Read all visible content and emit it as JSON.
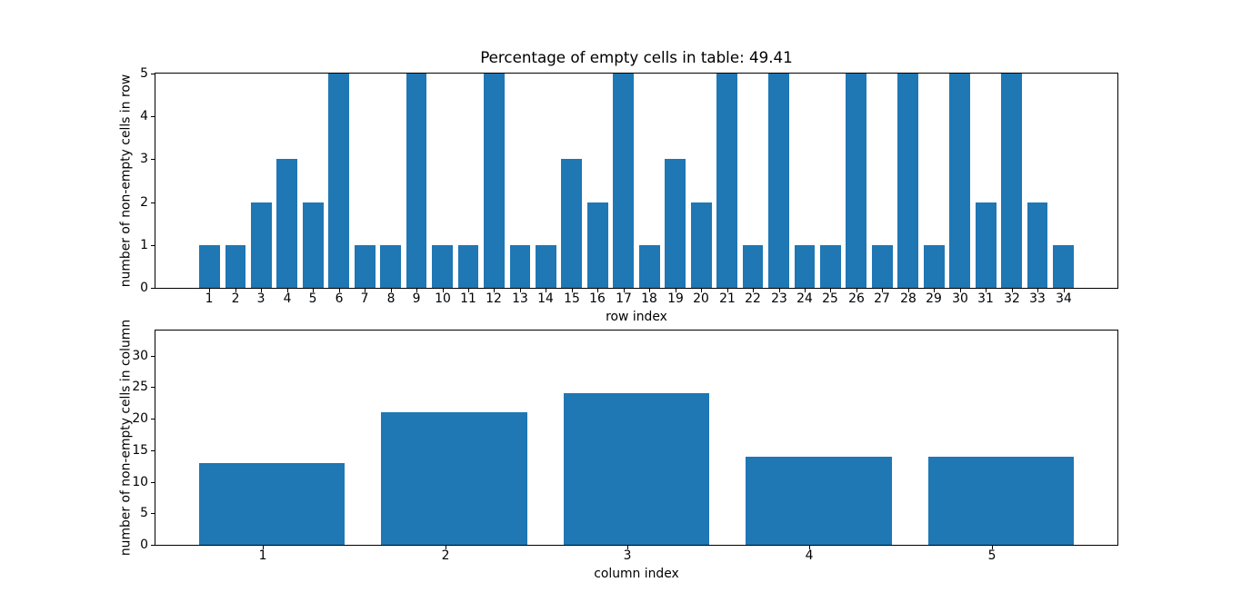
{
  "chart_data": [
    {
      "type": "bar",
      "title": "Percentage of empty cells in table: 49.41",
      "xlabel": "row index",
      "ylabel": "number of non-empty cells in row",
      "categories": [
        1,
        2,
        3,
        4,
        5,
        6,
        7,
        8,
        9,
        10,
        11,
        12,
        13,
        14,
        15,
        16,
        17,
        18,
        19,
        20,
        21,
        22,
        23,
        24,
        25,
        26,
        27,
        28,
        29,
        30,
        31,
        32,
        33,
        34
      ],
      "values": [
        1,
        1,
        2,
        3,
        2,
        5,
        1,
        1,
        5,
        1,
        1,
        5,
        1,
        1,
        3,
        2,
        5,
        1,
        3,
        2,
        5,
        1,
        5,
        1,
        1,
        5,
        1,
        5,
        1,
        5,
        2,
        5,
        2,
        1
      ],
      "bar_color": "#1f77b4",
      "bar_width": 0.8,
      "x_margin": 0.05,
      "ylim": [
        0,
        5
      ],
      "yticks": [
        0,
        1,
        2,
        3,
        4,
        5
      ],
      "xtick_offset": 0,
      "grid": false,
      "legend": null
    },
    {
      "type": "bar",
      "title": "",
      "xlabel": "column index",
      "ylabel": "number of non-empty cells in column",
      "categories": [
        1,
        2,
        3,
        4,
        5
      ],
      "values": [
        13,
        21,
        24,
        14,
        14
      ],
      "bar_color": "#1f77b4",
      "bar_width": 0.8,
      "x_margin": 0.05,
      "ylim": [
        0,
        34
      ],
      "yticks": [
        0,
        5,
        10,
        15,
        20,
        25,
        30
      ],
      "xtick_offset": -0.05,
      "grid": false,
      "legend": null
    }
  ]
}
